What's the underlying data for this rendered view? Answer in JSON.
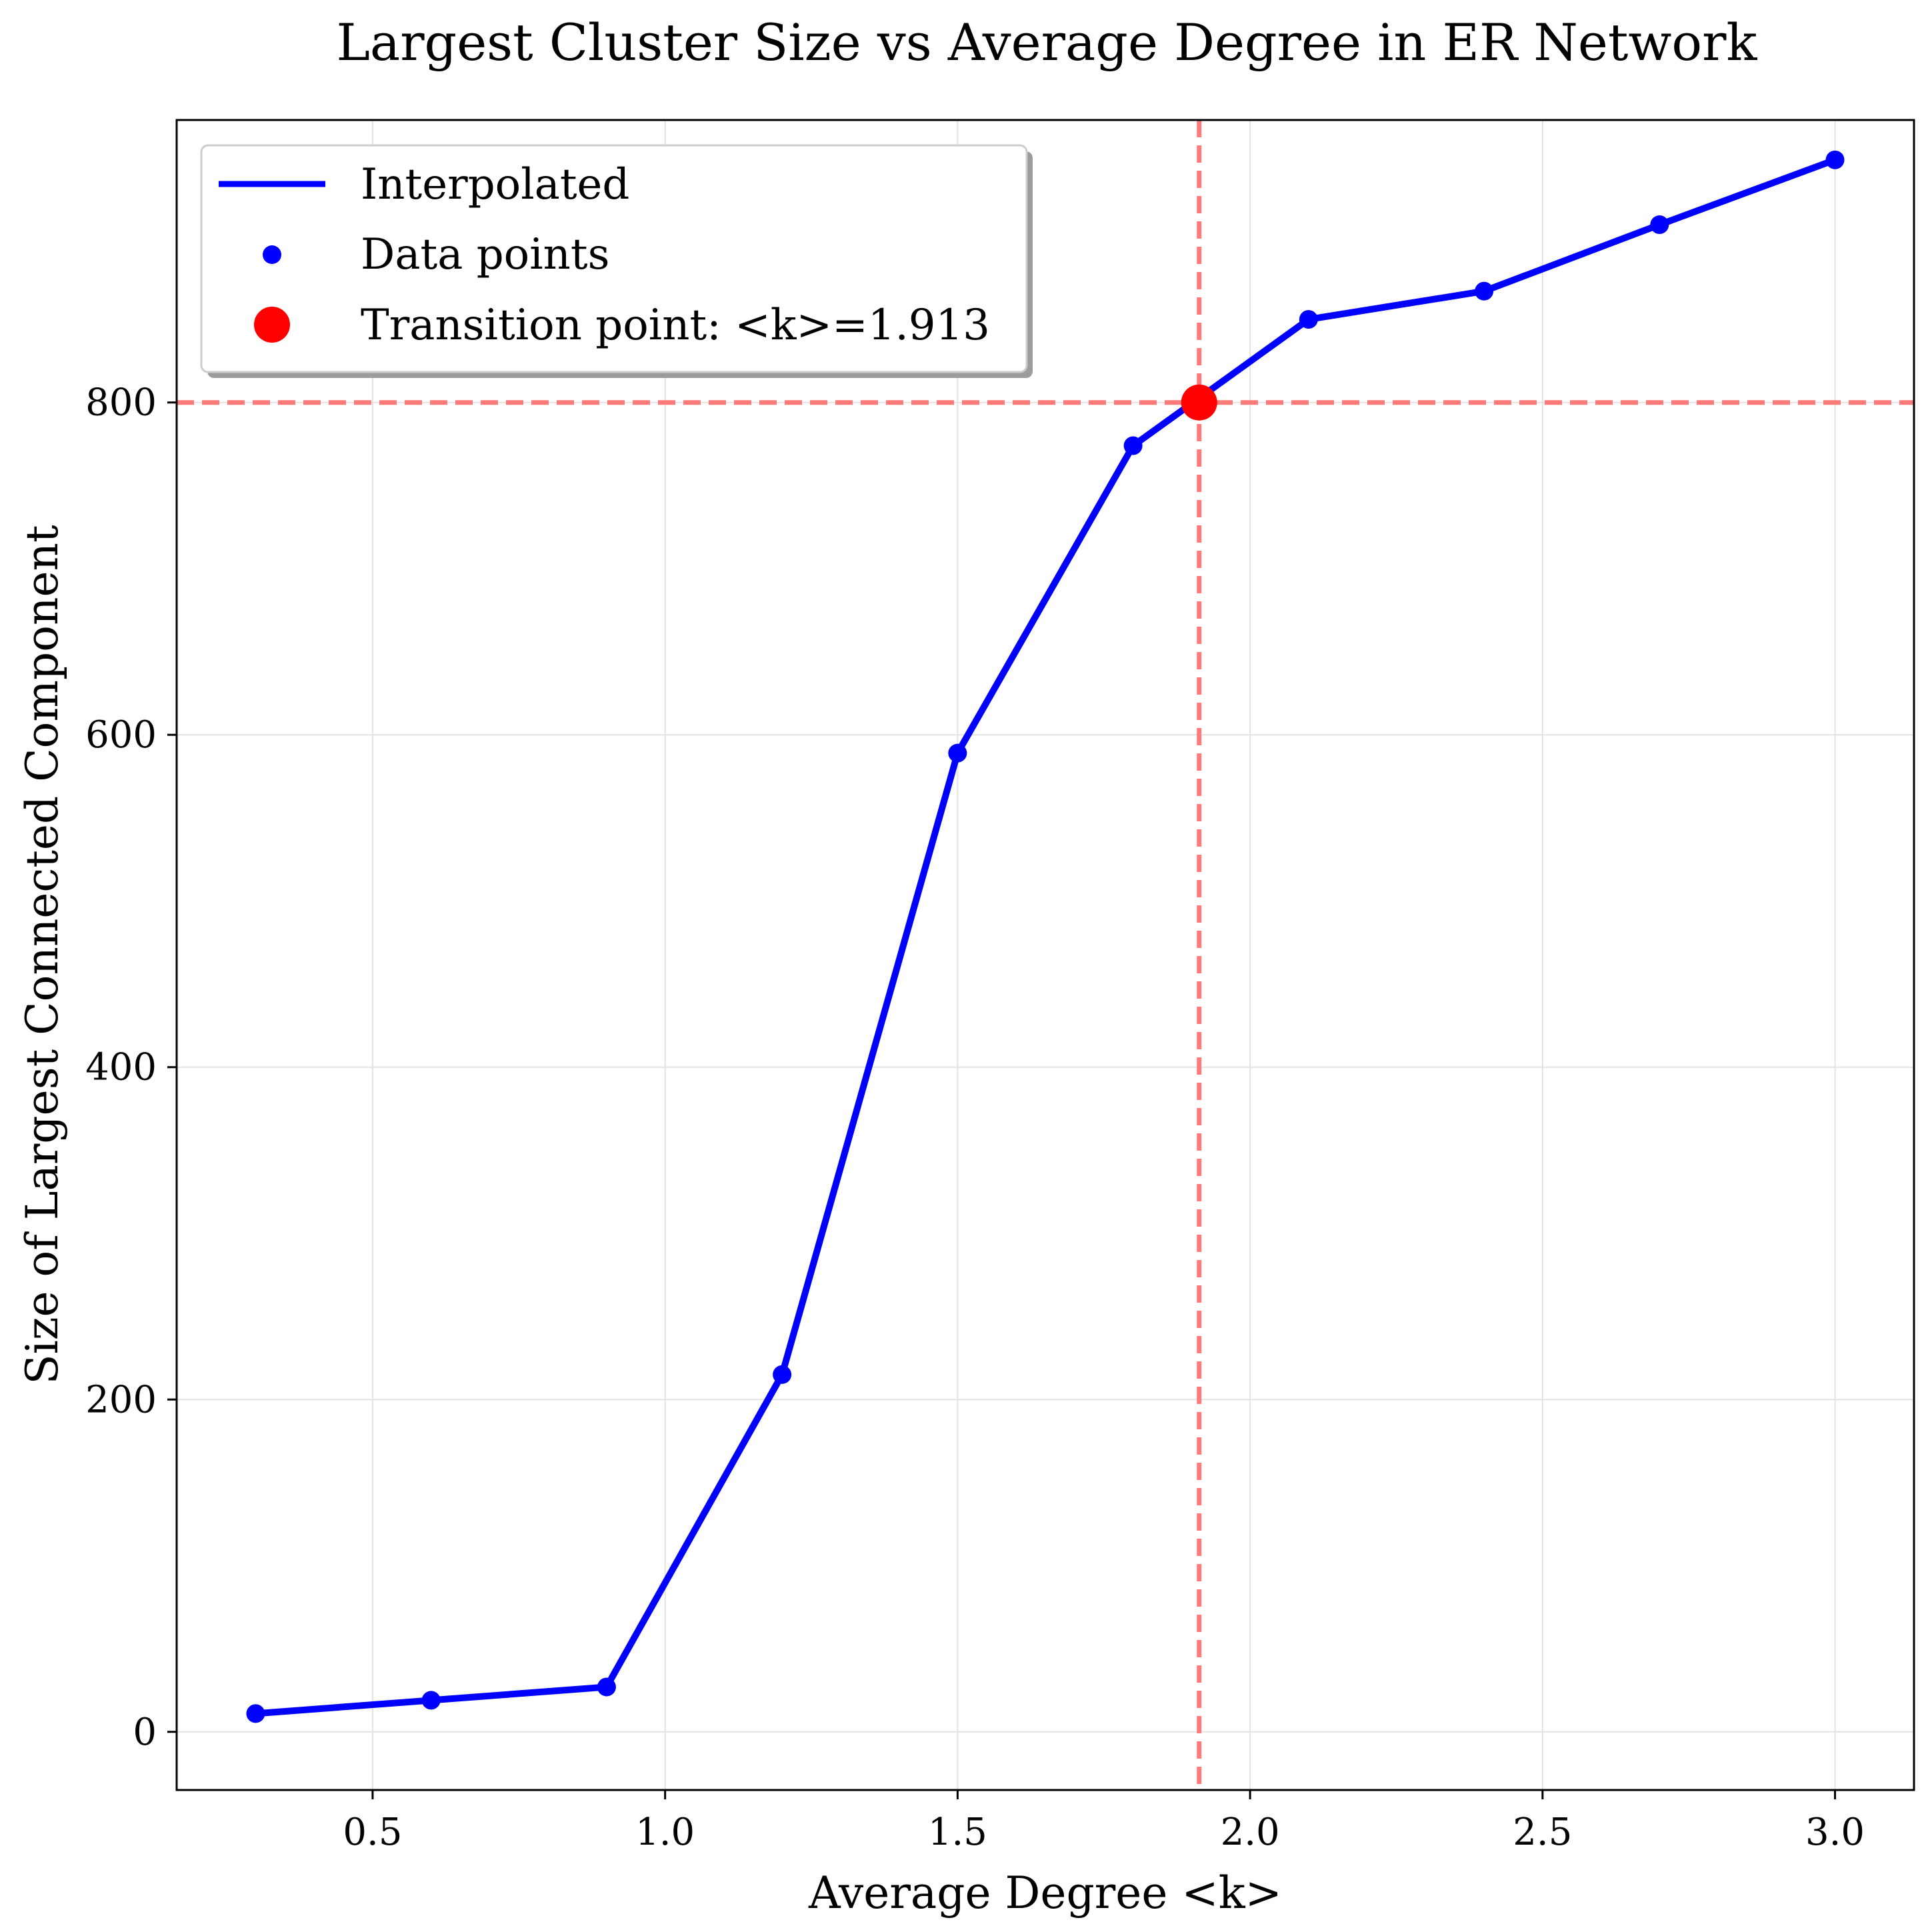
{
  "chart_data": {
    "type": "line",
    "title": "Largest Cluster Size vs Average Degree in ER Network",
    "xlabel": "Average Degree <k>",
    "ylabel": "Size of Largest Connected Component",
    "xlim": [
      0.165,
      3.135
    ],
    "ylim": [
      -35,
      970
    ],
    "xticks": [
      0.5,
      1.0,
      1.5,
      2.0,
      2.5,
      3.0
    ],
    "xtick_labels": [
      "0.5",
      "1.0",
      "1.5",
      "2.0",
      "2.5",
      "3.0"
    ],
    "yticks": [
      0,
      200,
      400,
      600,
      800
    ],
    "ytick_labels": [
      "0",
      "200",
      "400",
      "600",
      "800"
    ],
    "grid": true,
    "legend_position": "top-left",
    "series": [
      {
        "name": "Interpolated",
        "style": "line",
        "color": "#0000ff",
        "x": [
          0.3,
          0.6,
          0.9,
          1.2,
          1.5,
          1.8,
          2.1,
          2.4,
          2.7,
          3.0
        ],
        "y": [
          11,
          19,
          27,
          215,
          589,
          774,
          850,
          867,
          907,
          946
        ]
      },
      {
        "name": "Data points",
        "style": "markers",
        "color": "#0000ff",
        "x": [
          0.3,
          0.6,
          0.9,
          1.2,
          1.5,
          1.8,
          2.1,
          2.4,
          2.7,
          3.0
        ],
        "y": [
          11,
          19,
          27,
          215,
          589,
          774,
          850,
          867,
          907,
          946
        ]
      },
      {
        "name": "Transition point: <k>=1.913",
        "style": "marker",
        "color": "#ff0000",
        "x": [
          1.913
        ],
        "y": [
          800
        ]
      }
    ],
    "reference_lines": {
      "color": "#ff7b7b",
      "vertical_x": 1.913,
      "horizontal_y": 800
    }
  }
}
